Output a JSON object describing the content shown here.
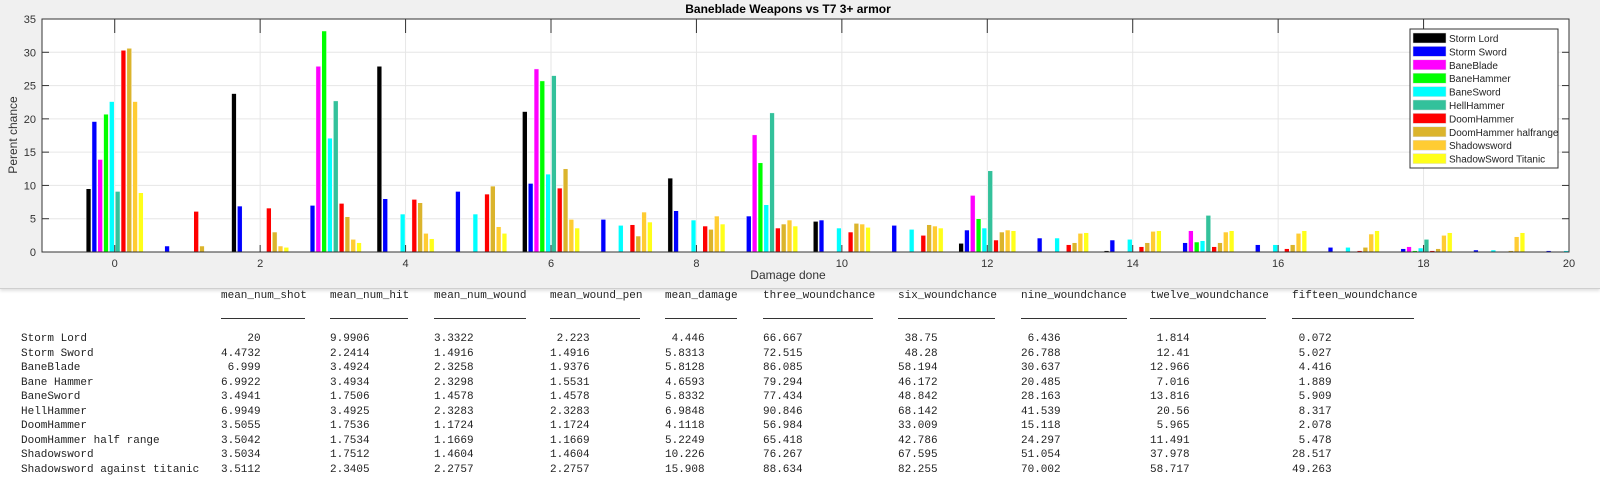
{
  "chart_data": {
    "type": "bar",
    "title": "Baneblade Weapons vs T7 3+ armor",
    "xlabel": "Damage done",
    "ylabel": "Perent chance",
    "xlim": [
      -1,
      20
    ],
    "ylim": [
      0,
      35
    ],
    "grid": true,
    "legend_position": "top-right",
    "x_ticks": [
      "0",
      "2",
      "4",
      "6",
      "8",
      "10",
      "12",
      "14",
      "16",
      "18",
      "20"
    ],
    "y_ticks": [
      "0",
      "5",
      "10",
      "15",
      "20",
      "25",
      "30",
      "35"
    ],
    "x": [
      0,
      1,
      2,
      3,
      4,
      5,
      6,
      7,
      8,
      9,
      10,
      11,
      12,
      13,
      14,
      15,
      16,
      17,
      18,
      19,
      20
    ],
    "series": [
      {
        "name": "Storm Lord",
        "color": "#000000",
        "values": [
          9.5,
          0,
          23.8,
          0,
          27.9,
          0,
          21.1,
          0,
          11.1,
          0,
          4.6,
          0,
          1.3,
          0,
          0.2,
          0,
          0,
          0,
          0,
          0,
          0
        ]
      },
      {
        "name": "Storm Sword",
        "color": "#0000ff",
        "values": [
          19.6,
          0.9,
          6.9,
          7.0,
          8.0,
          9.1,
          10.3,
          4.9,
          6.2,
          5.4,
          4.8,
          4.0,
          3.3,
          2.1,
          1.8,
          1.4,
          1.1,
          0.7,
          0.5,
          0.3,
          0.2
        ]
      },
      {
        "name": "BaneBlade",
        "color": "#ff00ff",
        "values": [
          13.9,
          0,
          0,
          27.9,
          0,
          0,
          27.5,
          0,
          0,
          17.6,
          0,
          0,
          8.5,
          0,
          0,
          3.2,
          0,
          0,
          0.8,
          0,
          0
        ]
      },
      {
        "name": "BaneHammer",
        "color": "#00ff00",
        "values": [
          20.7,
          0,
          0,
          33.2,
          0,
          0,
          25.7,
          0,
          0,
          13.4,
          0,
          0,
          5.0,
          0,
          0,
          1.5,
          0,
          0,
          0.2,
          0,
          0
        ]
      },
      {
        "name": "BaneSword",
        "color": "#00ffff",
        "values": [
          22.6,
          0,
          0,
          17.1,
          5.7,
          5.7,
          11.7,
          4.0,
          4.8,
          7.1,
          3.6,
          3.4,
          3.6,
          2.1,
          1.9,
          1.7,
          1.1,
          0.7,
          0.6,
          0.3,
          0.2
        ]
      },
      {
        "name": "HellHammer",
        "color": "#33c19b",
        "values": [
          9.1,
          0,
          0,
          22.7,
          0,
          0,
          26.5,
          0,
          0,
          20.9,
          0,
          0,
          12.2,
          0,
          0,
          5.5,
          0,
          0,
          1.9,
          0,
          0
        ]
      },
      {
        "name": "DoomHammer",
        "color": "#ff0000",
        "values": [
          30.3,
          6.1,
          6.6,
          7.3,
          7.9,
          8.7,
          9.6,
          4.1,
          3.9,
          3.6,
          3.0,
          2.5,
          1.8,
          1.1,
          0.8,
          0.8,
          0.5,
          0.2,
          0.2,
          0,
          0
        ]
      },
      {
        "name": "DoomHammer halfrange",
        "color": "#dbb42c",
        "values": [
          30.6,
          0.9,
          3.0,
          5.3,
          7.4,
          9.9,
          12.5,
          2.4,
          3.4,
          4.2,
          4.3,
          4.1,
          3.0,
          1.4,
          1.4,
          1.4,
          1.1,
          0.7,
          0.5,
          0.2,
          0
        ]
      },
      {
        "name": "Shadowsword",
        "color": "#ffcc33",
        "values": [
          22.6,
          0,
          0.9,
          1.9,
          2.8,
          3.8,
          4.9,
          6.0,
          5.4,
          4.8,
          4.2,
          3.9,
          3.3,
          2.8,
          3.1,
          3.0,
          2.8,
          2.7,
          2.5,
          2.3,
          0
        ]
      },
      {
        "name": "ShadowSword Titanic",
        "color": "#ffff1a",
        "values": [
          8.9,
          0,
          0.7,
          1.4,
          2.0,
          2.8,
          3.6,
          4.5,
          4.2,
          3.9,
          3.7,
          3.6,
          3.2,
          2.9,
          3.2,
          3.2,
          3.2,
          3.2,
          2.9,
          2.9,
          0
        ]
      }
    ]
  },
  "table": {
    "columns": [
      "mean_num_shot",
      "mean_num_hit",
      "mean_num_wound",
      "mean_wound_pen",
      "mean_damage",
      "three_woundchance",
      "six_woundchance",
      "nine_woundchance",
      "twelve_woundchance",
      "fifteen_woundchance"
    ],
    "rows": [
      {
        "name": "Storm Lord",
        "values": [
          "    20",
          "9.9906",
          "3.3322",
          " 2.223",
          " 4.446",
          "66.667",
          " 38.75",
          " 6.436",
          " 1.814",
          " 0.072"
        ]
      },
      {
        "name": "Storm Sword",
        "values": [
          "4.4732",
          "2.2414",
          "1.4916",
          "1.4916",
          "5.8313",
          "72.515",
          " 48.28",
          "26.788",
          " 12.41",
          " 5.027"
        ]
      },
      {
        "name": "BaneBlade",
        "values": [
          " 6.999",
          "3.4924",
          "2.3258",
          "1.9376",
          "5.8128",
          "86.085",
          "58.194",
          "30.637",
          "12.966",
          " 4.416"
        ]
      },
      {
        "name": "Bane Hammer",
        "values": [
          "6.9922",
          "3.4934",
          "2.3298",
          "1.5531",
          "4.6593",
          "79.294",
          "46.172",
          "20.485",
          " 7.016",
          " 1.889"
        ]
      },
      {
        "name": "BaneSword",
        "values": [
          "3.4941",
          "1.7506",
          "1.4578",
          "1.4578",
          "5.8332",
          "77.434",
          "48.842",
          "28.163",
          "13.816",
          " 5.909"
        ]
      },
      {
        "name": "HellHammer",
        "values": [
          "6.9949",
          "3.4925",
          "2.3283",
          "2.3283",
          "6.9848",
          "90.846",
          "68.142",
          "41.539",
          " 20.56",
          " 8.317"
        ]
      },
      {
        "name": "DoomHammer",
        "values": [
          "3.5055",
          "1.7536",
          "1.1724",
          "1.1724",
          "4.1118",
          "56.984",
          "33.009",
          "15.118",
          " 5.965",
          " 2.078"
        ]
      },
      {
        "name": "DoomHammer half range",
        "values": [
          "3.5042",
          "1.7534",
          "1.1669",
          "1.1669",
          "5.2249",
          "65.418",
          "42.786",
          "24.297",
          "11.491",
          " 5.478"
        ]
      },
      {
        "name": "Shadowsword",
        "values": [
          "3.5034",
          "1.7512",
          "1.4604",
          "1.4604",
          "10.226",
          "76.267",
          "67.595",
          "51.054",
          "37.978",
          "28.517"
        ]
      },
      {
        "name": "Shadowsword against titanic",
        "values": [
          "3.5112",
          "2.3405",
          "2.2757",
          "2.2757",
          "15.908",
          "88.634",
          "82.255",
          "70.002",
          "58.717",
          "49.263"
        ]
      }
    ]
  }
}
